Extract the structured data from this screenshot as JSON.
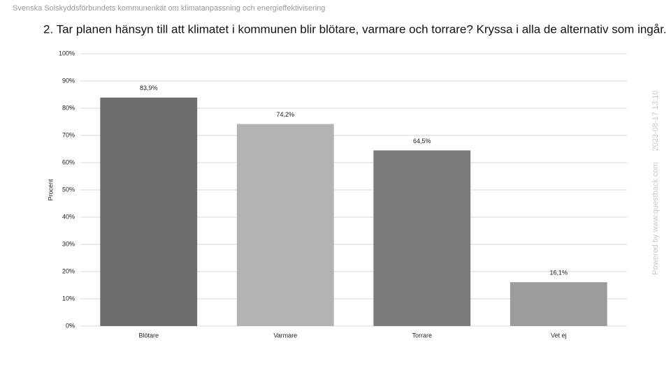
{
  "chart_data": {
    "type": "bar",
    "header": "Svenska Solskyddsförbundets kommunenkät om klimatanpassning och energieffektivisering",
    "title": "2. Tar planen hänsyn till att klimatet i kommunen blir blötare, varmare och torrare? Kryssa i alla de alternativ som ingår.",
    "ylabel": "Procent",
    "watermark": "Powered by www.questback.com",
    "timestamp": "2023-08-17 13:10",
    "categories": [
      "Blötare",
      "Varmare",
      "Torrare",
      "Vet ej"
    ],
    "values": [
      83.9,
      74.2,
      64.5,
      16.1
    ],
    "value_labels": [
      "83,9%",
      "74,2%",
      "64,5%",
      "16,1%"
    ],
    "colors": [
      "#6e6e6e",
      "#b3b3b3",
      "#7b7b7b",
      "#9c9c9c"
    ],
    "ylim": [
      0,
      100
    ],
    "yticks": [
      {
        "value": 0,
        "label": "0%"
      },
      {
        "value": 10,
        "label": "10%"
      },
      {
        "value": 20,
        "label": "20%"
      },
      {
        "value": 30,
        "label": "30%"
      },
      {
        "value": 40,
        "label": "40%"
      },
      {
        "value": 50,
        "label": "50%"
      },
      {
        "value": 60,
        "label": "60%"
      },
      {
        "value": 70,
        "label": "70%"
      },
      {
        "value": 80,
        "label": "80%"
      },
      {
        "value": 90,
        "label": "90%"
      },
      {
        "value": 100,
        "label": "100%"
      }
    ],
    "grid": true
  }
}
